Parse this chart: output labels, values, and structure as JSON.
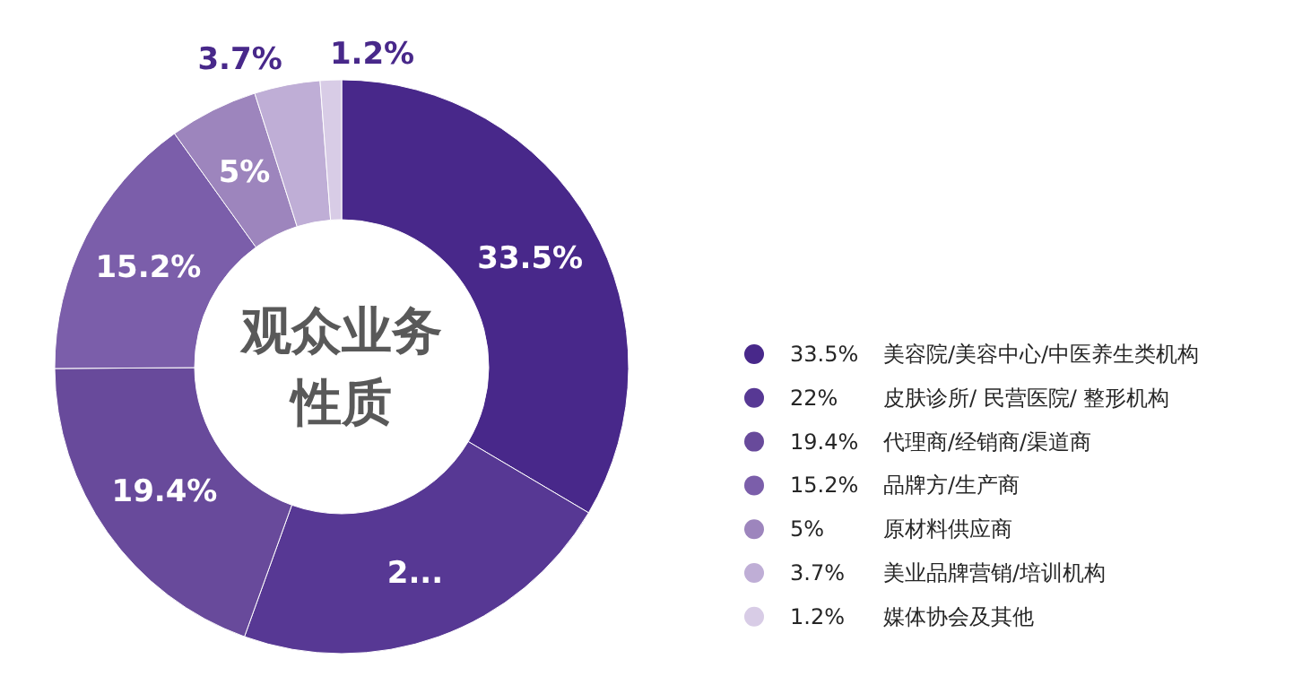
{
  "chart_data": {
    "type": "donut",
    "title": "观众业务性质",
    "categories": [
      "33.5% 美容院/美容中心/中医养生类机构",
      "22% 皮肤诊所/ 民营医院/ 整形机构",
      "19.4% 代理商/经销商/渠道商",
      "15.2% 品牌方/生产商",
      "5% 原材料供应商",
      "3.7% 美业品牌营销/培训机构",
      "1.2% 媒体协会及其他"
    ],
    "values": [
      33.5,
      22,
      19.4,
      15.2,
      5,
      3.7,
      1.2
    ],
    "colors": [
      "#48288a",
      "#573894",
      "#684a9b",
      "#7b5eaa",
      "#9d85bd",
      "#bfaed6",
      "#d8cce6"
    ],
    "value_labels": [
      "33.5%",
      "2...",
      "19.4%",
      "15.2%",
      "5%",
      "3.7%",
      "1.2%"
    ],
    "legend": "right"
  }
}
